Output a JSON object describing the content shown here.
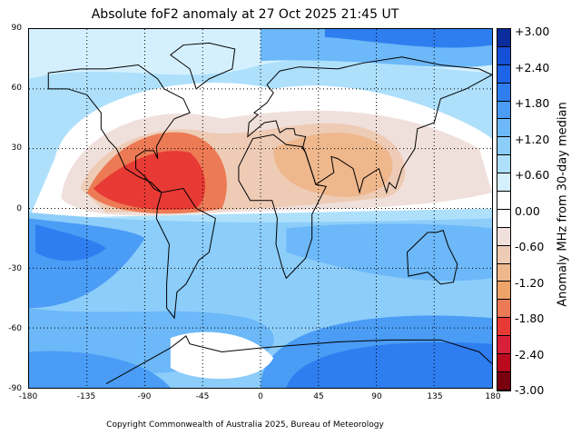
{
  "title": "Absolute foF2 anomaly at 27 Oct 2025 21:45 UT",
  "copyright": "Copyright Commonwealth of Australia 2025, Bureau of Meteorology",
  "lat_labels": [
    "90",
    "60",
    "30",
    "0",
    "-30",
    "-60",
    "-90"
  ],
  "lon_labels": [
    "-180",
    "-135",
    "-90",
    "-45",
    "0",
    "45",
    "90",
    "135",
    "180"
  ],
  "colorbar": {
    "title": "Anomaly MHz from 30-day median",
    "labels": [
      "+3.00",
      "+2.40",
      "+1.80",
      "+1.20",
      "+0.60",
      "0.00",
      "-0.60",
      "-1.20",
      "-1.80",
      "-2.40",
      "-3.00"
    ],
    "colors": [
      "#0a2c9c",
      "#1450d8",
      "#1e64e6",
      "#2f7ef0",
      "#4a9cf5",
      "#6cb8f8",
      "#8ccdfa",
      "#aee0fc",
      "#d4f0fe",
      "#ffffff",
      "#ffffff",
      "#f0e0dc",
      "#eecbb5",
      "#eeb78c",
      "#eda36a",
      "#ec7a55",
      "#e83a34",
      "#d8203a",
      "#bb0a1e",
      "#7a0010"
    ]
  }
}
